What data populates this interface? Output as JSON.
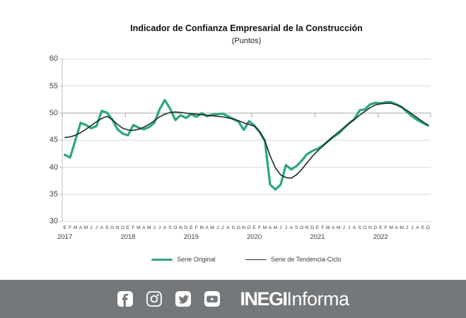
{
  "chart_data": {
    "type": "line",
    "title": "Indicador de Confianza Empresarial de la Construcción",
    "subtitle": "(Puntos)",
    "ylabel": "",
    "xlabel": "",
    "ylim": [
      30,
      60
    ],
    "y_ticks": [
      30,
      35,
      40,
      45,
      50,
      55,
      60
    ],
    "grid": "horizontal",
    "axis_cross_value": 50,
    "legend_position": "bottom",
    "month_letter_cycle": "EFMAMJJASOND",
    "years": [
      {
        "label": "2017",
        "n_months": 12
      },
      {
        "label": "2018",
        "n_months": 12
      },
      {
        "label": "2019",
        "n_months": 12
      },
      {
        "label": "2020",
        "n_months": 12
      },
      {
        "label": "2021",
        "n_months": 12
      },
      {
        "label": "2022",
        "n_months": 10
      }
    ],
    "series": [
      {
        "name": "Serie Original",
        "color": "#2BA67D",
        "line_width": 3.2,
        "values": [
          42.3,
          41.8,
          45.0,
          48.2,
          47.8,
          47.2,
          47.6,
          50.4,
          50.1,
          48.8,
          47.0,
          46.2,
          45.9,
          47.8,
          47.3,
          47.0,
          47.4,
          48.2,
          50.7,
          52.4,
          50.8,
          48.7,
          49.6,
          49.1,
          49.8,
          49.3,
          50.0,
          49.4,
          49.7,
          49.8,
          49.9,
          49.4,
          48.9,
          48.4,
          46.9,
          48.5,
          47.7,
          46.5,
          44.9,
          36.8,
          35.9,
          36.8,
          40.4,
          39.6,
          40.2,
          41.2,
          42.4,
          43.0,
          43.4,
          44.0,
          44.8,
          45.6,
          46.2,
          47.2,
          48.1,
          48.9,
          50.5,
          50.7,
          51.6,
          51.9,
          51.8,
          52.0,
          52.0,
          51.6,
          51.1,
          50.2,
          49.4,
          48.7,
          48.2,
          47.7
        ]
      },
      {
        "name": "Serie de Tendencia-Ciclo",
        "color": "#1B2A33",
        "line_width": 1.6,
        "values": [
          45.5,
          45.6,
          45.9,
          46.4,
          47.0,
          47.7,
          48.4,
          49.0,
          49.4,
          48.8,
          47.9,
          47.2,
          46.9,
          46.8,
          47.0,
          47.4,
          47.9,
          48.6,
          49.3,
          49.8,
          50.1,
          50.2,
          50.1,
          50.0,
          49.9,
          49.8,
          49.7,
          49.6,
          49.5,
          49.4,
          49.3,
          49.1,
          48.9,
          48.6,
          48.2,
          47.9,
          47.6,
          46.6,
          44.9,
          42.1,
          39.9,
          38.6,
          38.1,
          38.0,
          38.6,
          39.6,
          40.8,
          42.0,
          43.0,
          43.9,
          44.8,
          45.7,
          46.5,
          47.3,
          48.1,
          48.8,
          49.6,
          50.3,
          51.0,
          51.5,
          51.7,
          51.8,
          51.8,
          51.5,
          51.1,
          50.5,
          49.8,
          49.1,
          48.4,
          47.8
        ]
      }
    ],
    "style": {
      "gridline_color": "#D9D9D9",
      "cross_axis_color": "#A6A6A6",
      "left_axis_color": "#BFBFBF",
      "label_color": "#404040"
    }
  },
  "footer": {
    "background": "#75787B",
    "icons": [
      "facebook",
      "instagram",
      "twitter",
      "youtube"
    ],
    "logo_bold": "INEGI",
    "logo_regular": "Informa"
  }
}
